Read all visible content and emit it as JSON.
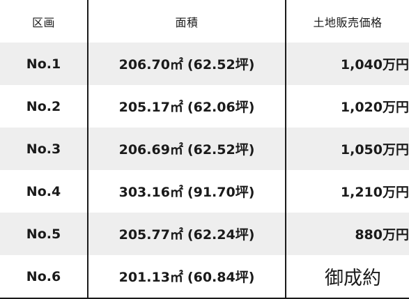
{
  "table": {
    "headers": {
      "lot": "区画",
      "area": "面積",
      "price": "土地販売価格"
    },
    "rows": [
      {
        "lot": "No.1",
        "area_sqm": "206.70㎡",
        "area_tsubo": "(62.52坪)",
        "price": "1,040万円",
        "status": "available"
      },
      {
        "lot": "No.2",
        "area_sqm": "205.17㎡",
        "area_tsubo": "(62.06坪)",
        "price": "1,020万円",
        "status": "available"
      },
      {
        "lot": "No.3",
        "area_sqm": "206.69㎡",
        "area_tsubo": "(62.52坪)",
        "price": "1,050万円",
        "status": "available"
      },
      {
        "lot": "No.4",
        "area_sqm": "303.16㎡",
        "area_tsubo": "(91.70坪)",
        "price": "1,210万円",
        "status": "available"
      },
      {
        "lot": "No.5",
        "area_sqm": "205.77㎡",
        "area_tsubo": "(62.24坪)",
        "price": "880万円",
        "status": "available"
      },
      {
        "lot": "No.6",
        "area_sqm": "201.13㎡",
        "area_tsubo": "(60.84坪)",
        "price": "御成約",
        "status": "sold"
      }
    ]
  },
  "colors": {
    "row_shaded": "#eeeeee",
    "row_plain": "#ffffff",
    "divider": "#1a1a1a",
    "text": "#1a1a1a"
  }
}
